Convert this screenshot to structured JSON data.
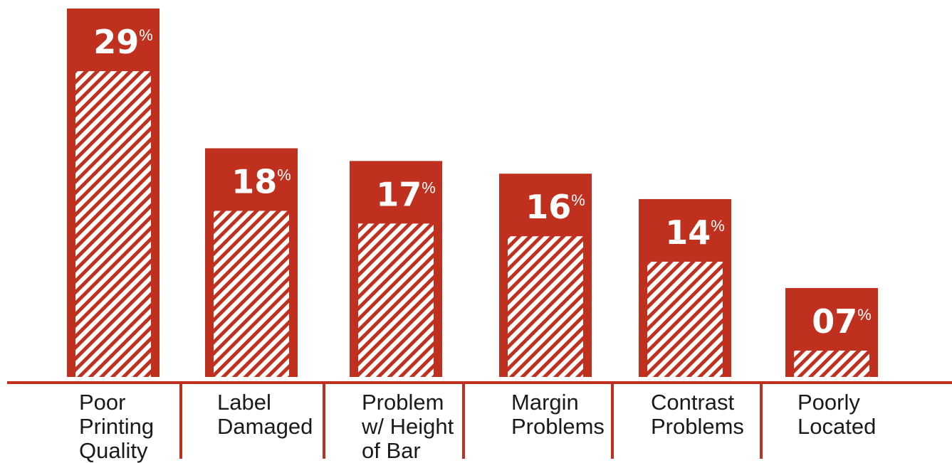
{
  "colors": {
    "bar": "#c0301f",
    "stripe": "#ffffff",
    "axis": "#c0301f",
    "text": "#1a1a1a"
  },
  "chart_data": {
    "type": "bar",
    "title": "",
    "xlabel": "",
    "ylabel": "",
    "ylim": [
      0,
      29
    ],
    "grid": false,
    "legend": "none",
    "value_suffix": "%",
    "categories": [
      [
        "Poor",
        "Printing",
        "Quality"
      ],
      [
        "Label",
        "Damaged"
      ],
      [
        "Problem",
        "w/ Height",
        "of Bar"
      ],
      [
        "Margin",
        "Problems"
      ],
      [
        "Contrast",
        "Problems"
      ],
      [
        "Poorly",
        "Located"
      ]
    ],
    "values": [
      29,
      18,
      17,
      16,
      14,
      7
    ],
    "value_labels": [
      "29",
      "18",
      "17",
      "16",
      "14",
      "07"
    ]
  }
}
